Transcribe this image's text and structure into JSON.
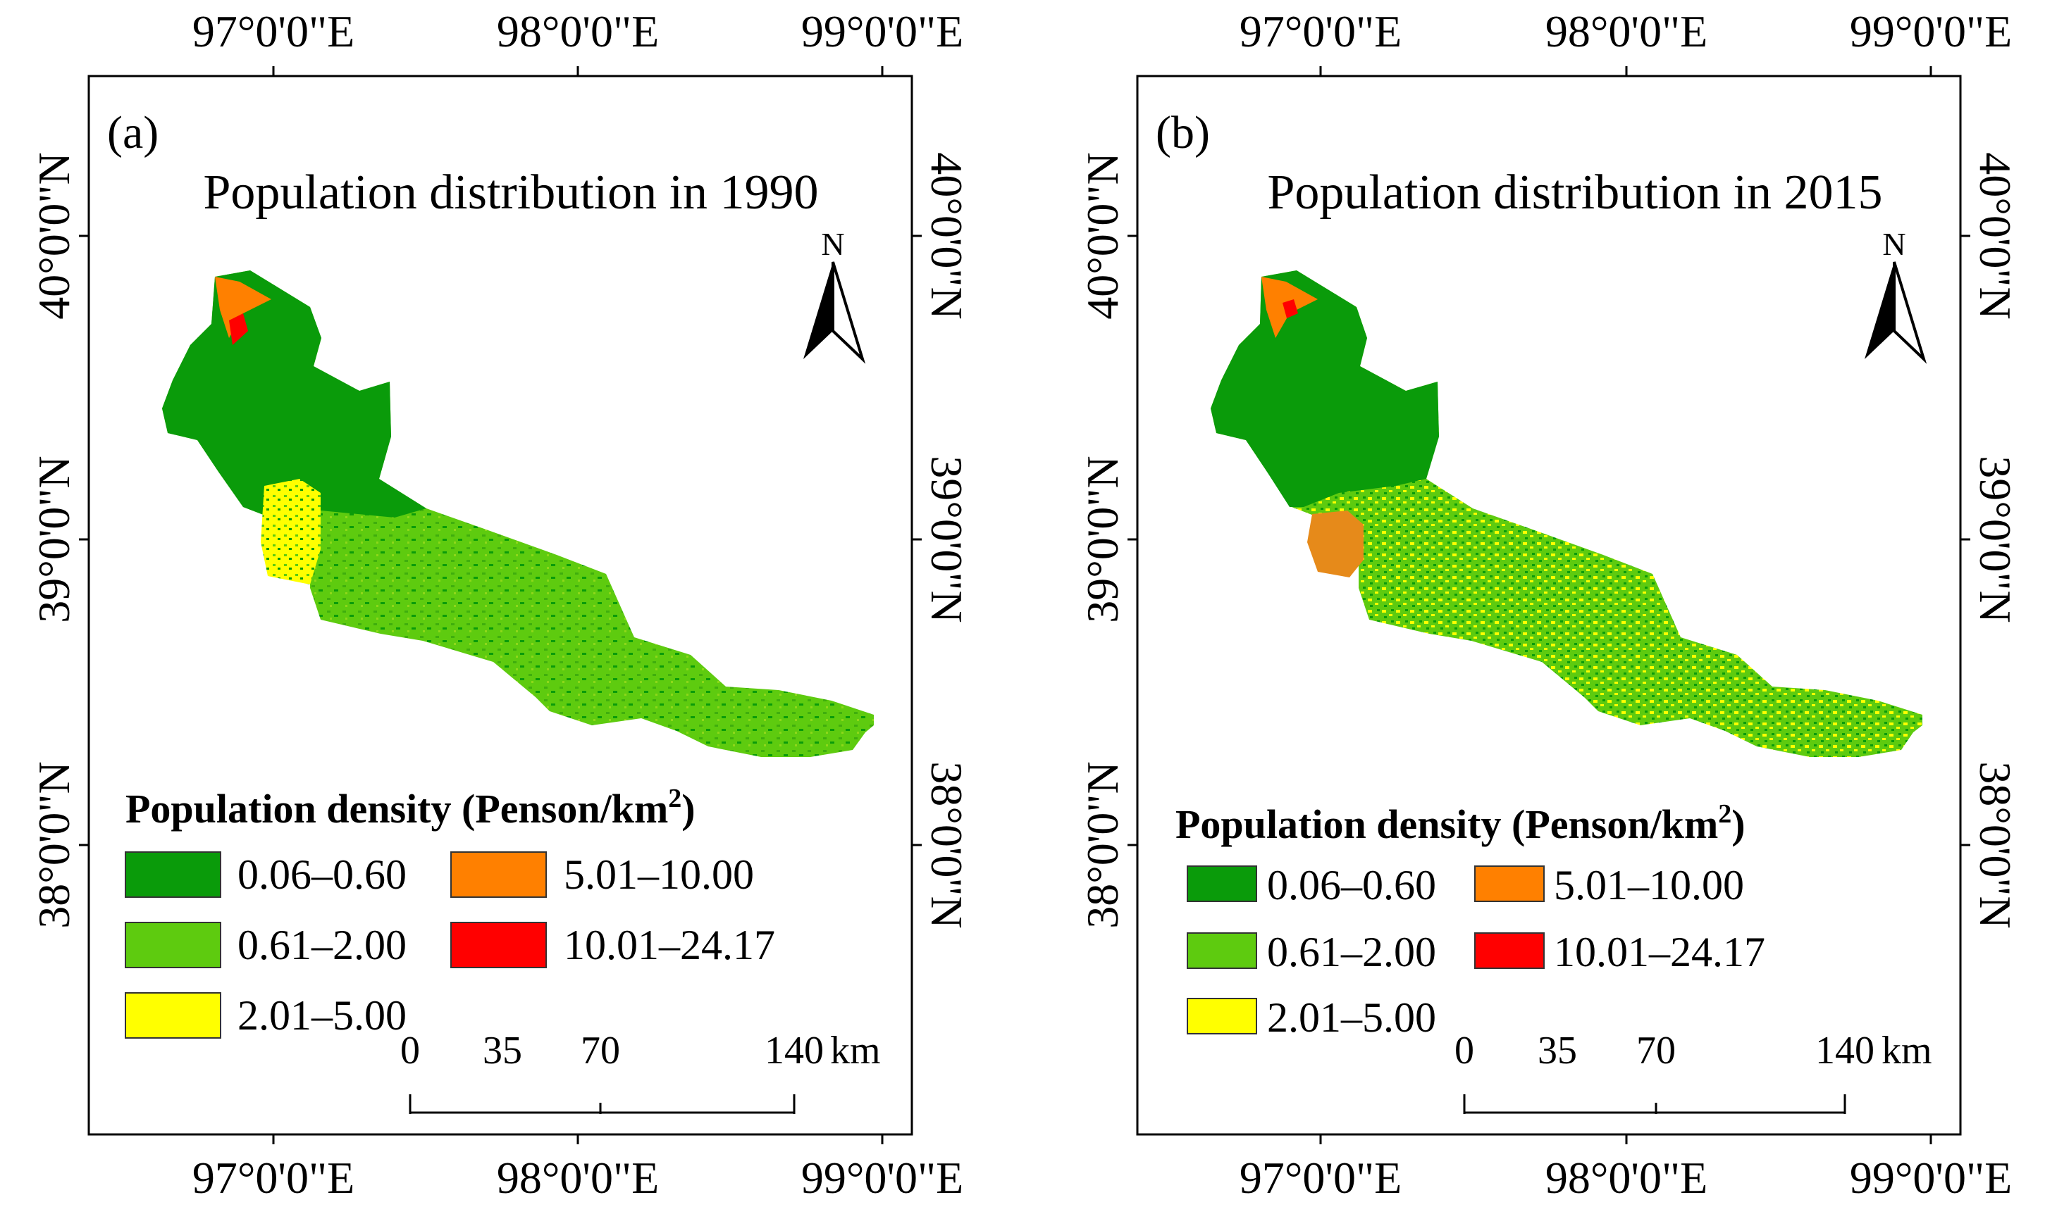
{
  "figure": {
    "panels": [
      {
        "label": "(a)",
        "title": "Population distribution in 1990",
        "colors": {
          "c1": "#0a9b0a",
          "c2": "#5ecb0f",
          "c3": "#ffff00",
          "c4": "#ff8000",
          "c5": "#ff0000"
        }
      },
      {
        "label": "(b)",
        "title": "Population distribution in 2015",
        "colors": {
          "c1": "#0a9b0a",
          "c2": "#5ecb0f",
          "c3": "#ffff00",
          "c4": "#ff8000",
          "c5": "#ff0000"
        }
      }
    ],
    "lon_ticks": [
      "97°0'0\"E",
      "98°0'0\"E",
      "99°0'0\"E"
    ],
    "lat_ticks": [
      "40°0'0\"N",
      "39°0'0\"N",
      "38°0'0\"N"
    ],
    "north_label": "N",
    "legend": {
      "title": "Population density (Penson/km",
      "title_sup": "2",
      "title_end": ")",
      "classes": [
        {
          "label": "0.06–0.60",
          "color": "#0a9b0a"
        },
        {
          "label": "0.61–2.00",
          "color": "#5ecb0f"
        },
        {
          "label": "2.01–5.00",
          "color": "#ffff00"
        },
        {
          "label": "5.01–10.00",
          "color": "#ff8000"
        },
        {
          "label": "10.01–24.17",
          "color": "#ff0000"
        }
      ]
    },
    "scale_bar": {
      "labels": [
        "0",
        "35",
        "70",
        "140"
      ],
      "unit": "km"
    }
  }
}
